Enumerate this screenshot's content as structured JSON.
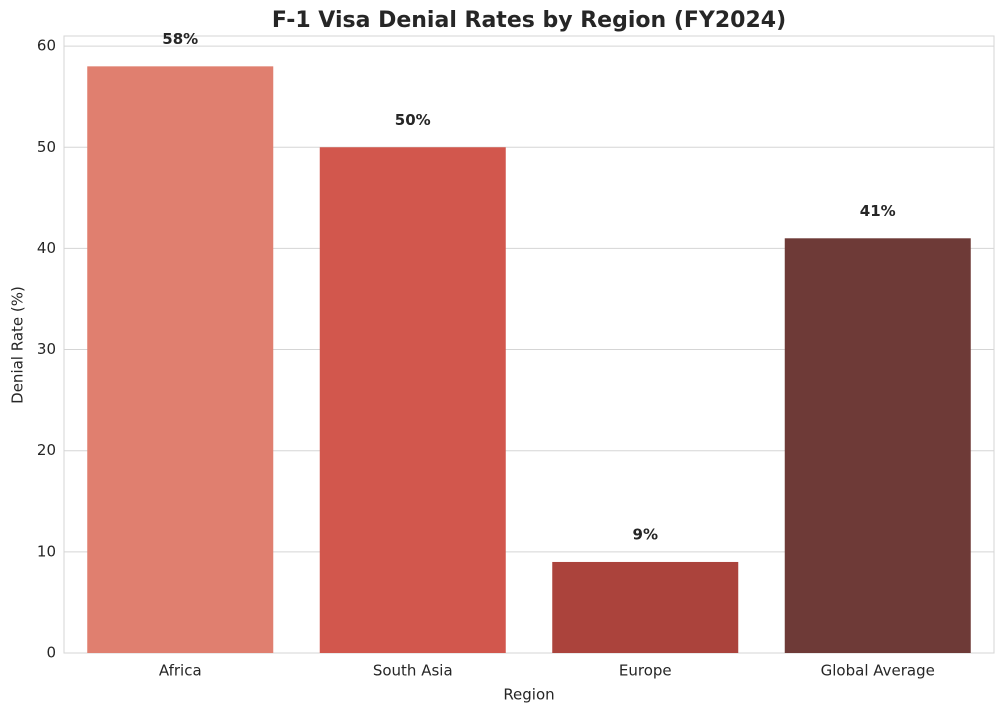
{
  "chart_data": {
    "type": "bar",
    "title": "F-1 Visa Denial Rates by Region (FY2024)",
    "categories": [
      "Africa",
      "South Asia",
      "Europe",
      "Global Average"
    ],
    "values": [
      58,
      50,
      9,
      41
    ],
    "value_labels": [
      "58%",
      "50%",
      "9%",
      "41%"
    ],
    "colors": [
      "#e07f6f",
      "#d2574d",
      "#ab433c",
      "#6e3a37"
    ],
    "xlabel": "Region",
    "ylabel": "Denial Rate (%)",
    "ylim": [
      0,
      61
    ],
    "yticks": [
      0,
      10,
      20,
      30,
      40,
      50,
      60
    ],
    "grid": true
  }
}
